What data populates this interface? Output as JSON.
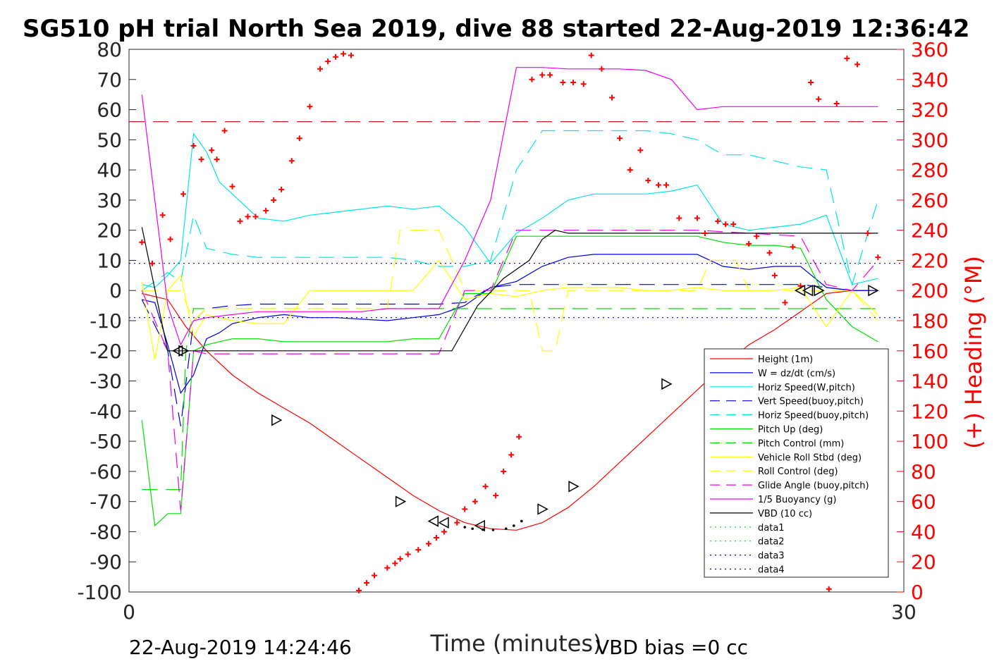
{
  "chart_data": {
    "type": "line",
    "title": "SG510 pH trial North Sea 2019, dive 88 started 22-Aug-2019 12:36:42",
    "xlabel": "Time (minutes)",
    "ylabel_right": "(+) Heading (°M)",
    "xlim": [
      0,
      30
    ],
    "ylim": [
      -100,
      80
    ],
    "ylim_right": [
      0,
      360
    ],
    "x_ticks": [
      "0",
      "30"
    ],
    "y_ticks": [
      "80",
      "70",
      "60",
      "50",
      "40",
      "30",
      "20",
      "10",
      "0",
      "-10",
      "-20",
      "-30",
      "-40",
      "-50",
      "-60",
      "-70",
      "-80",
      "-90",
      "-100"
    ],
    "y_right_ticks": [
      "360",
      "340",
      "320",
      "300",
      "280",
      "260",
      "240",
      "220",
      "200",
      "180",
      "160",
      "140",
      "120",
      "100",
      "80",
      "60",
      "40",
      "20",
      "0"
    ],
    "grid": false,
    "legend_position": "lower-right",
    "series": [
      {
        "name": "Height (1m)",
        "color": "#ff0000",
        "style": "solid",
        "x": [
          0.5,
          1.5,
          2.2,
          3.0,
          4.0,
          5.0,
          6.0,
          7.0,
          8.0,
          9.0,
          10.0,
          11.0,
          12.0,
          13.0,
          14.0,
          15.0,
          16.0,
          17.0,
          18.0,
          19.0,
          20.0,
          21.0,
          22.0,
          23.0,
          24.0,
          25.0,
          26.0,
          27.0,
          28.0,
          29.0
        ],
        "y": [
          -1,
          -3,
          -12,
          -20,
          -28,
          -34,
          -39,
          -44,
          -50,
          -56,
          -62,
          -68,
          -73,
          -77,
          -79,
          -79.5,
          -77,
          -72,
          -65,
          -57,
          -49,
          -41,
          -33,
          -25,
          -18,
          -13,
          -7,
          -1,
          0,
          0
        ]
      },
      {
        "name": "W = dz/dt (cm/s)",
        "color": "#0000dd",
        "style": "solid",
        "x": [
          0.5,
          1.0,
          1.5,
          2.0,
          2.5,
          3.0,
          3.5,
          4.0,
          5.0,
          6.0,
          7.0,
          8.0,
          9.0,
          10.0,
          11.0,
          12.0,
          13.0,
          14.0,
          15.0,
          16.0,
          17.0,
          18.0,
          19.0,
          20.0,
          21.0,
          22.0,
          23.0,
          24.0,
          25.0,
          26.0,
          27.0,
          28.0,
          29.0
        ],
        "y": [
          -3,
          -4,
          -18,
          -34,
          -28,
          -16,
          -14,
          -11,
          -9,
          -8,
          -9,
          -9,
          -9.5,
          -10,
          -9,
          -8,
          -5,
          1,
          3,
          8,
          11,
          12,
          12,
          12,
          12,
          12,
          8,
          7,
          8,
          8,
          1,
          0,
          0
        ]
      },
      {
        "name": "Horiz Speed(W,pitch)",
        "color": "#00e5e5",
        "style": "solid",
        "x": [
          0.5,
          1.0,
          1.5,
          2.0,
          2.5,
          3.0,
          3.5,
          4.0,
          5.0,
          6.0,
          7.0,
          8.0,
          9.0,
          10.0,
          11.0,
          12.0,
          13.0,
          14.0,
          15.0,
          16.0,
          17.0,
          18.0,
          19.0,
          20.0,
          21.0,
          22.0,
          23.0,
          24.0,
          25.0,
          26.0,
          27.0,
          28.0,
          29.0
        ],
        "y": [
          2,
          1,
          5,
          10,
          52,
          46,
          36,
          32,
          24,
          23,
          25,
          26,
          27,
          28,
          27,
          28,
          21,
          9,
          19,
          24,
          30,
          32,
          32,
          32,
          33,
          35,
          22,
          20,
          21,
          22,
          25,
          2,
          4
        ]
      },
      {
        "name": "Vert Speed(buoy,pitch)",
        "color": "#0000dd",
        "style": "dashed",
        "x": [
          0.5,
          1.5,
          2.0,
          2.5,
          3.0,
          4.0,
          5.0,
          6.0,
          7.0,
          8.0,
          9.0,
          10.0,
          11.0,
          12.0,
          13.0,
          14.0,
          15.0,
          16.0,
          17.0,
          18.0,
          19.0,
          20.0,
          21.0,
          22.0,
          23.0,
          24.0,
          25.0,
          26.0,
          27.0,
          28.0,
          29.0
        ],
        "y": [
          -3,
          -20,
          -45,
          -10,
          -6,
          -5,
          -4.5,
          -4.5,
          -4.5,
          -4.5,
          -4.5,
          -4.5,
          -4.5,
          -4.5,
          -4,
          1,
          2,
          2,
          2,
          2,
          2,
          2,
          2,
          2,
          2,
          2,
          2,
          2,
          1,
          0,
          0
        ]
      },
      {
        "name": "Horiz Speed(buoy,pitch)",
        "color": "#00e5e5",
        "style": "dashed",
        "x": [
          0.5,
          1.5,
          2.0,
          2.5,
          3.0,
          3.5,
          4.0,
          5.0,
          6.0,
          7.0,
          8.0,
          9.0,
          10.0,
          11.0,
          12.0,
          13.0,
          14.0,
          15.0,
          16.0,
          17.0,
          18.0,
          19.0,
          20.0,
          21.0,
          22.0,
          23.0,
          24.0,
          25.0,
          26.0,
          27.0,
          28.0,
          29.0
        ],
        "y": [
          0,
          6,
          3,
          25,
          14,
          13,
          12,
          11,
          11,
          11,
          11,
          11,
          11,
          10,
          8,
          8,
          10,
          40,
          53,
          53,
          53,
          53,
          53,
          52,
          50,
          45,
          45,
          43,
          41,
          40,
          2,
          30
        ]
      },
      {
        "name": "Pitch Up (deg)",
        "color": "#00dd00",
        "style": "solid",
        "x": [
          0.5,
          1.0,
          1.5,
          2.0,
          2.5,
          3.0,
          3.5,
          4.0,
          5.0,
          6.0,
          7.0,
          8.0,
          9.0,
          10.0,
          11.0,
          12.0,
          13.0,
          14.0,
          15.0,
          16.0,
          17.0,
          18.0,
          19.0,
          20.0,
          21.0,
          22.0,
          23.0,
          24.0,
          25.0,
          26.0,
          27.0,
          28.0,
          29.0
        ],
        "y": [
          -43,
          -78,
          -74,
          -74,
          -20,
          -18,
          -17,
          -16,
          -16,
          -17,
          -17,
          -17,
          -17,
          -17,
          -16,
          -16,
          -1,
          -1,
          18,
          18,
          18,
          18,
          18,
          18,
          18,
          18,
          16,
          15,
          15,
          14,
          -3,
          -12,
          -17
        ]
      },
      {
        "name": "Pitch Control (mm)",
        "color": "#00dd00",
        "style": "dashed",
        "x": [
          0.5,
          2.0,
          2.2,
          2.5,
          3.0,
          29.0
        ],
        "y": [
          -66,
          -66,
          -20,
          -6,
          -6,
          -6
        ]
      },
      {
        "name": "Vehicle Roll Stbd (deg)",
        "color": "#ffff00",
        "style": "solid",
        "x": [
          0.5,
          1.0,
          1.5,
          2.0,
          2.5,
          3.0,
          4.0,
          5.0,
          6.0,
          7.0,
          8.0,
          9.0,
          10.0,
          11.0,
          12.0,
          13.0,
          14.0,
          15.0,
          16.0,
          17.0,
          18.0,
          19.0,
          20.0,
          21.0,
          22.0,
          23.0,
          24.0,
          25.0,
          26.0,
          27.0,
          28.0,
          29.0
        ],
        "y": [
          3,
          -23,
          0,
          5,
          -15,
          -8,
          -10,
          -11,
          -11,
          0,
          0,
          0,
          0,
          0,
          10,
          -3,
          -1,
          -2,
          0,
          1,
          1,
          1,
          0,
          0,
          1,
          0,
          0,
          0,
          1,
          -12,
          0,
          -8
        ]
      },
      {
        "name": "Roll Control (deg)",
        "color": "#ffff00",
        "style": "dashed",
        "x": [
          0.5,
          2.0,
          2.5,
          3.0,
          4.0,
          8.0,
          10.0,
          10.5,
          11.0,
          12.0,
          13.0,
          14.0,
          15.0,
          15.5,
          16.0,
          16.5,
          17.0,
          18.0,
          22.0,
          22.5,
          23.0,
          23.5,
          24.0,
          25.0,
          26.0,
          27.0,
          28.0,
          29.0
        ],
        "y": [
          0,
          0,
          -10,
          -6,
          -6,
          -6,
          -6,
          20,
          20,
          20,
          0,
          0,
          0,
          0,
          -20,
          -20,
          0,
          0,
          0,
          10,
          10,
          10,
          0,
          0,
          0,
          0,
          0,
          -10
        ]
      },
      {
        "name": "Glide Angle (buoy,pitch)",
        "color": "#ee00ee",
        "style": "dashed",
        "x": [
          0.5,
          1.5,
          2.0,
          2.5,
          3.0,
          4.0,
          6.0,
          8.0,
          10.0,
          12.0,
          13.0,
          14.0,
          15.0,
          16.0,
          18.0,
          20.0,
          22.0,
          24.0,
          26.0,
          27.0,
          28.0,
          29.0
        ],
        "y": [
          0,
          -20,
          -73,
          -20,
          -21,
          -21,
          -21,
          -21,
          -21,
          -21,
          0,
          0,
          20,
          20,
          20,
          20,
          20,
          19,
          18,
          2,
          0,
          10
        ]
      },
      {
        "name": "1/5 Buoyancy (g)",
        "color": "#ee00ee",
        "style": "solid",
        "x": [
          0.5,
          1.5,
          2.0,
          2.5,
          3.0,
          4.0,
          5.0,
          6.0,
          7.0,
          8.0,
          9.0,
          10.0,
          11.0,
          12.0,
          13.0,
          14.0,
          15.0,
          16.0,
          17.0,
          18.0,
          19.0,
          20.0,
          21.0,
          22.0,
          23.0,
          24.0,
          25.0,
          26.0,
          27.0,
          28.0,
          29.0
        ],
        "y": [
          65,
          -5,
          -18,
          -10,
          -9,
          -8,
          -7,
          -7,
          -7,
          -7,
          -7,
          -6,
          -6,
          -6,
          10,
          30,
          74,
          74,
          73.5,
          73.5,
          73.5,
          73,
          70,
          60,
          61,
          61,
          61,
          61,
          61,
          61,
          61
        ]
      },
      {
        "name": "VBD (10 cc)",
        "color": "#000000",
        "style": "solid",
        "x": [
          0.5,
          1.5,
          2.0,
          2.5,
          3.0,
          11.5,
          12.5,
          13.5,
          14.5,
          15.5,
          16.0,
          16.5,
          17.0,
          18.0,
          19.0,
          20.0,
          21.0,
          22.0,
          23.0,
          24.0,
          25.0,
          26.0,
          27.0,
          28.0,
          29.0
        ],
        "y": [
          21,
          -20,
          -20,
          -20,
          -20,
          -20,
          -20,
          -5,
          4,
          10,
          17,
          20,
          19,
          19,
          19,
          19,
          19,
          19,
          19,
          19,
          19,
          19,
          19,
          19,
          19
        ]
      },
      {
        "name": "data1",
        "color": "#00dd00",
        "style": "dotted",
        "x": [],
        "y": []
      },
      {
        "name": "data2",
        "color": "#00dd00",
        "style": "dotted",
        "x": [],
        "y": []
      },
      {
        "name": "data3",
        "color": "#0000aa",
        "style": "dotted",
        "x": [
          0,
          30
        ],
        "y": [
          9,
          9
        ]
      },
      {
        "name": "data4",
        "color": "#0000aa",
        "style": "dotted",
        "x": [
          0,
          30
        ],
        "y": [
          -9,
          -9
        ]
      }
    ],
    "reference_lines": [
      {
        "axis": "right",
        "value": 312,
        "color": "#cc0000",
        "style": "dashed"
      }
    ],
    "heading_points": {
      "color": "#ff0000",
      "x": [
        0.5,
        0.9,
        1.3,
        1.6,
        2.1,
        2.5,
        2.8,
        3.2,
        3.4,
        3.7,
        4.0,
        4.3,
        4.6,
        4.9,
        5.3,
        5.6,
        5.9,
        6.3,
        6.6,
        7.0,
        7.4,
        7.7,
        8.0,
        8.3,
        8.6,
        8.9,
        9.2,
        9.5,
        10.0,
        10.3,
        10.5,
        10.8,
        11.2,
        11.6,
        11.9,
        12.2,
        12.7,
        13.0,
        13.4,
        13.8,
        14.2,
        14.5,
        14.8,
        15.1,
        15.6,
        16.0,
        16.3,
        16.8,
        17.2,
        17.6,
        17.9,
        18.3,
        18.7,
        19.0,
        19.4,
        19.8,
        20.1,
        20.5,
        20.8,
        21.3,
        22.0,
        22.3,
        22.8,
        23.1,
        23.4,
        24.0,
        24.3,
        24.8,
        25.0,
        25.4,
        25.7,
        26.0,
        26.4,
        26.7,
        27.1,
        27.4,
        27.8,
        28.2,
        28.6,
        29.0
      ],
      "y": [
        232,
        218,
        250,
        234,
        264,
        296,
        287,
        293,
        287,
        306,
        269,
        246,
        249,
        249,
        253,
        260,
        267,
        286,
        301,
        322,
        347,
        352,
        355,
        357,
        356,
        1,
        6,
        11,
        16,
        19,
        22,
        25,
        28,
        32,
        36,
        40,
        46,
        55,
        60,
        70,
        64,
        80,
        91,
        103,
        340,
        343,
        343,
        338,
        338,
        337,
        356,
        347,
        328,
        301,
        280,
        293,
        273,
        270,
        270,
        248,
        248,
        238,
        246,
        244,
        244,
        231,
        236,
        225,
        210,
        192,
        229,
        203,
        338,
        327,
        2,
        324,
        354,
        350,
        238,
        222
      ]
    },
    "triangle_markers": {
      "right": {
        "x": [
          2.1,
          5.7,
          10.5,
          16.0,
          17.2,
          20.8,
          26.7,
          28.8
        ],
        "y": [
          -20,
          -43,
          -70,
          -72.5,
          -65,
          -31,
          0,
          0
        ]
      },
      "left": {
        "x": [
          1.9,
          11.8,
          12.2,
          13.6,
          26.0,
          26.3
        ],
        "y": [
          -20,
          -76.5,
          -77,
          -78,
          0,
          0
        ]
      }
    },
    "legend_entries": [
      "Height (1m)",
      "W = dz/dt (cm/s)",
      "Horiz Speed(W,pitch)",
      "Vert Speed(buoy,pitch)",
      "Horiz Speed(buoy,pitch)",
      "Pitch Up (deg)",
      "Pitch Control (mm)",
      "Vehicle Roll Stbd (deg)",
      "Roll Control (deg)",
      "Glide Angle (buoy,pitch)",
      "1/5 Buoyancy (g)",
      "VBD (10 cc)",
      "data1",
      "data2",
      "data3",
      "data4"
    ],
    "footer_left": "22-Aug-2019 14:24:46",
    "footer_right": "VBD bias =0 cc"
  }
}
